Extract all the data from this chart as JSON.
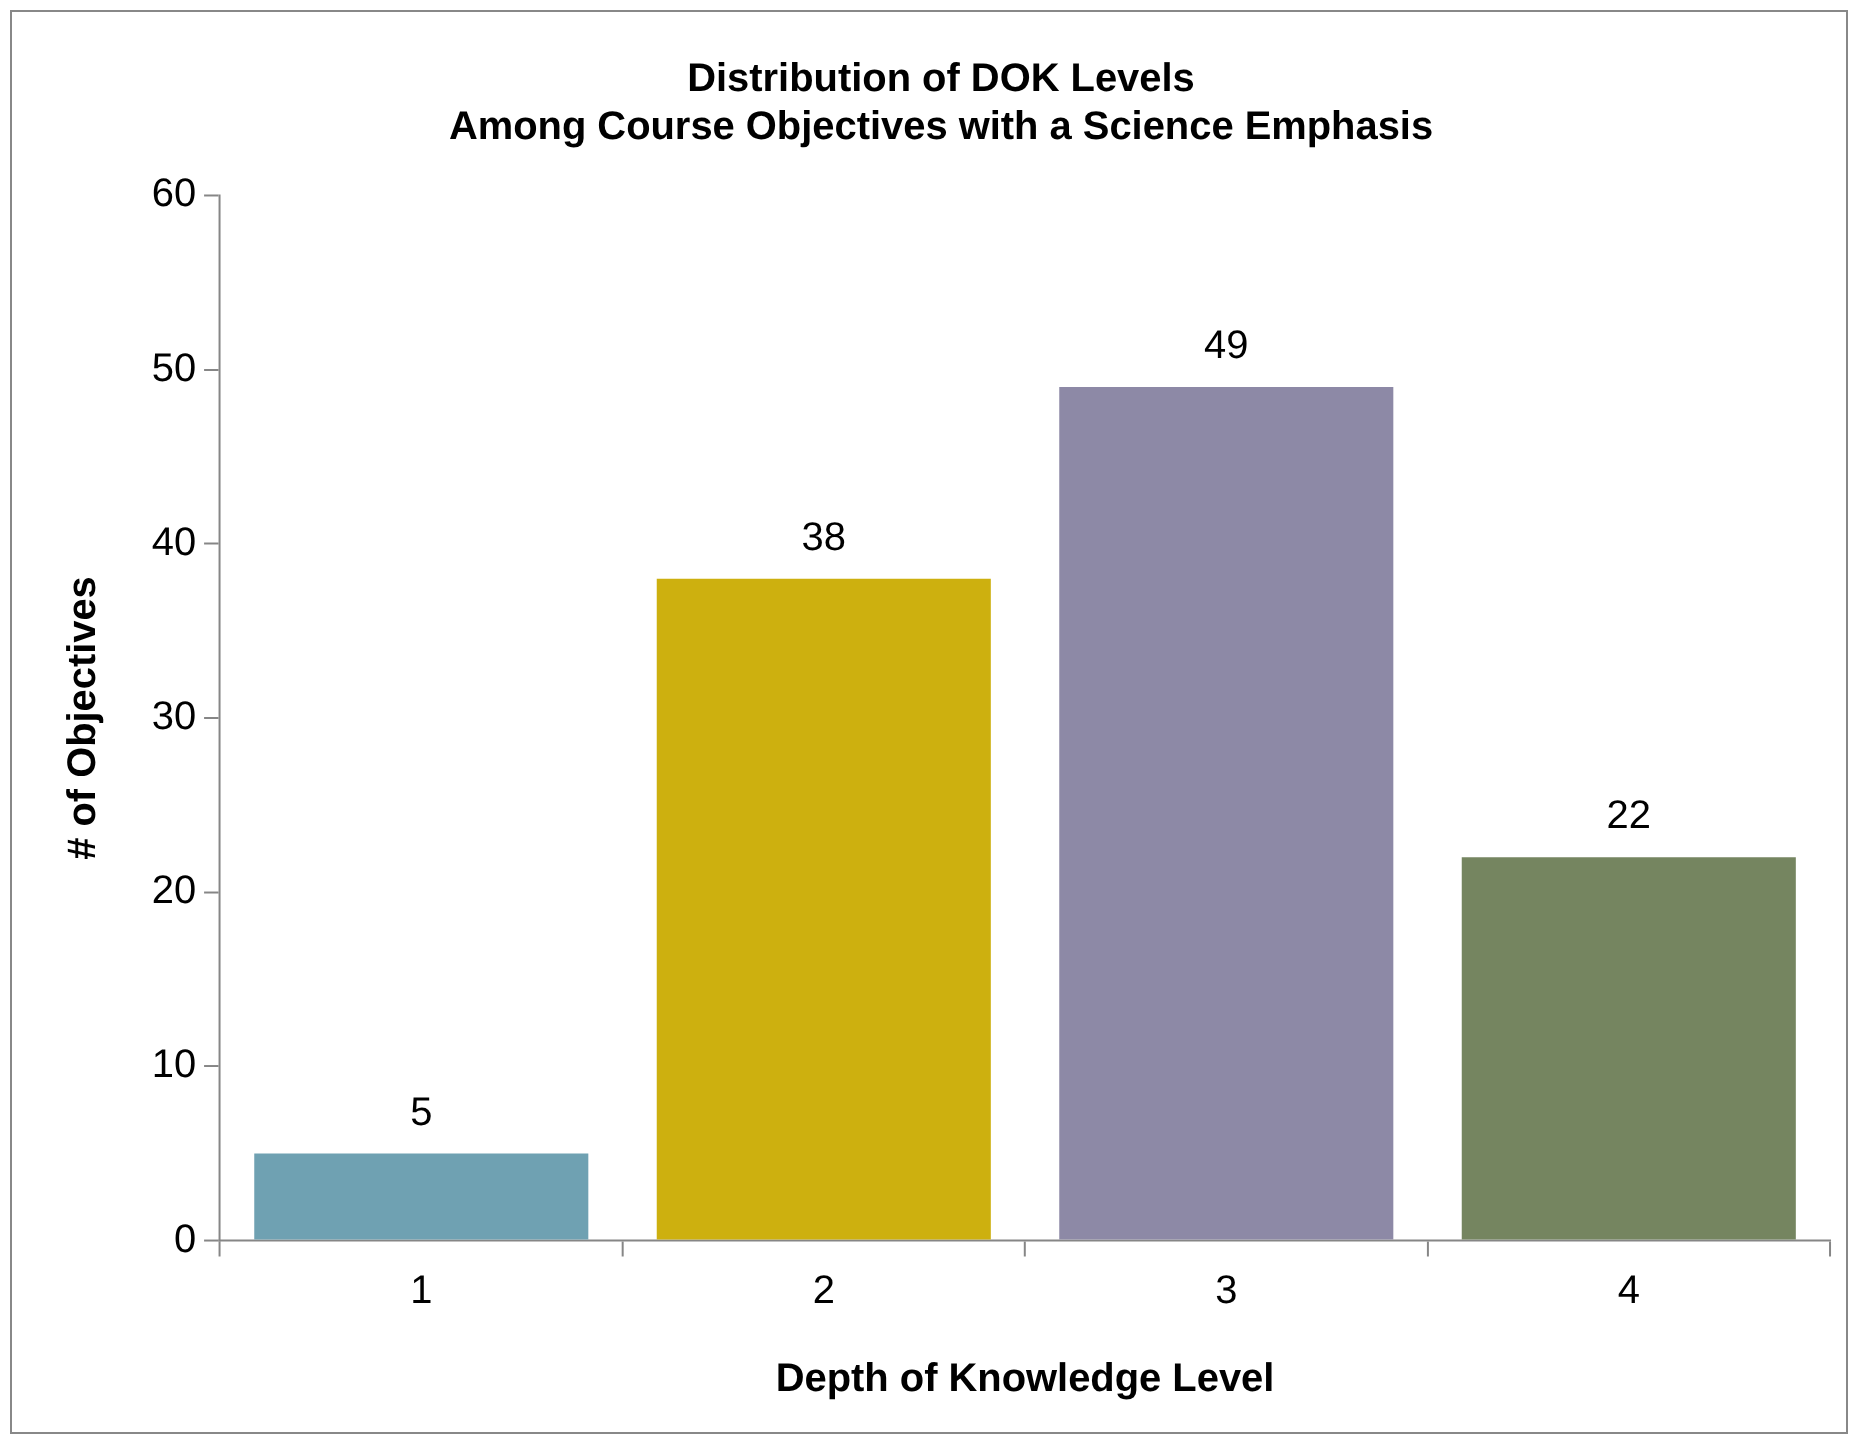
{
  "chart_data": {
    "type": "bar",
    "title": "Distribution of DOK Levels\nAmong Course Objectives with a Science Emphasis",
    "xlabel": "Depth of Knowledge Level",
    "ylabel": "# of Objectives",
    "categories": [
      "1",
      "2",
      "3",
      "4"
    ],
    "values": [
      5,
      38,
      49,
      22
    ],
    "colors": [
      "#6fa1b2",
      "#cdb00f",
      "#8d89a6",
      "#758560"
    ],
    "ylim": [
      0,
      60
    ],
    "yticks": [
      0,
      10,
      20,
      30,
      40,
      50,
      60
    ],
    "grid": false,
    "legend": false,
    "data_labels": true
  }
}
